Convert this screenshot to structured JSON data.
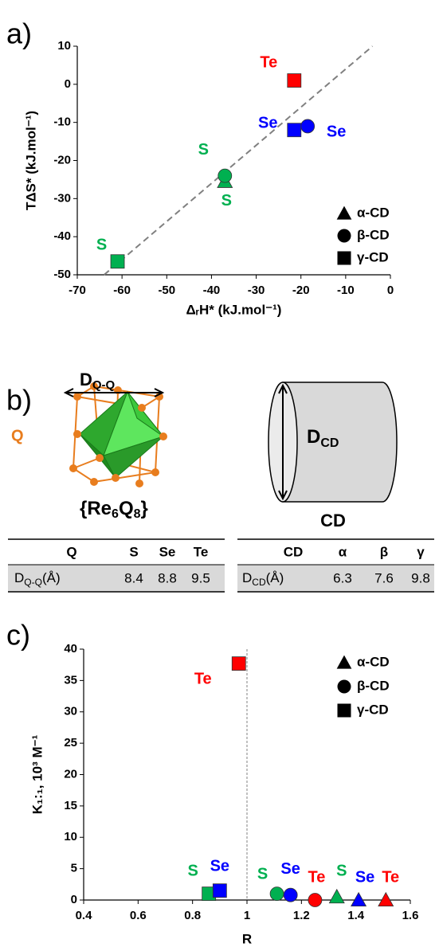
{
  "chart_data": [
    {
      "type": "scatter",
      "panel": "a)",
      "x_label": "ΔᵣH* (kJ.mol⁻¹)",
      "y_label": "TΔS* (kJ.mol⁻¹)",
      "xlim": [
        -70,
        0
      ],
      "xticks": [
        -70,
        -60,
        -50,
        -40,
        -30,
        -20,
        -10,
        0
      ],
      "ylim": [
        -50,
        10
      ],
      "yticks": [
        -50,
        -40,
        -30,
        -20,
        -10,
        0,
        10
      ],
      "trend_line": {
        "x": [
          -64,
          -4
        ],
        "y": [
          -50,
          10
        ]
      },
      "legend_color": "#000000",
      "series": [
        {
          "name": "α-CD",
          "marker": "triangle",
          "x": [
            -37
          ],
          "values": [
            -25.5
          ],
          "labels": [
            "S"
          ],
          "colors": [
            "#00b050"
          ]
        },
        {
          "name": "β-CD",
          "marker": "circle",
          "x": [
            -37,
            -18.5
          ],
          "values": [
            -24,
            -11
          ],
          "labels": [
            "S",
            "Se"
          ],
          "colors": [
            "#00b050",
            "#0000ff"
          ]
        },
        {
          "name": "γ-CD",
          "marker": "square",
          "x": [
            -61,
            -21.5,
            -21.5
          ],
          "values": [
            -46.5,
            -12,
            1
          ],
          "labels": [
            "S",
            "Se",
            "Te"
          ],
          "colors": [
            "#00b050",
            "#0000ff",
            "#ff0000"
          ]
        }
      ]
    },
    {
      "type": "scatter",
      "panel": "c)",
      "x_label": "R",
      "y_label": "K₁:₁, 10³ M⁻¹",
      "xlim": [
        0.4,
        1.6
      ],
      "xticks": [
        0.4,
        0.6,
        0.8,
        1,
        1.2,
        1.4,
        1.6
      ],
      "ylim": [
        0,
        40
      ],
      "yticks": [
        0,
        5,
        10,
        15,
        20,
        25,
        30,
        35,
        40
      ],
      "reference_x": 1,
      "legend_color": "#000000",
      "series": [
        {
          "name": "α-CD",
          "marker": "triangle",
          "x": [
            1.33,
            1.41,
            1.51
          ],
          "values": [
            0.5,
            0,
            0
          ],
          "labels": [
            "S",
            "Se",
            "Te"
          ],
          "colors": [
            "#00b050",
            "#0000ff",
            "#ff0000"
          ]
        },
        {
          "name": "β-CD",
          "marker": "circle",
          "x": [
            1.11,
            1.16,
            1.25
          ],
          "values": [
            1,
            0.8,
            0
          ],
          "labels": [
            "S",
            "Se",
            "Te"
          ],
          "colors": [
            "#00b050",
            "#0000ff",
            "#ff0000"
          ]
        },
        {
          "name": "γ-CD",
          "marker": "square",
          "x": [
            0.86,
            0.9,
            0.97
          ],
          "values": [
            1,
            1.5,
            37.7
          ],
          "labels": [
            "S",
            "Se",
            "Te"
          ],
          "colors": [
            "#00b050",
            "#0000ff",
            "#ff0000"
          ]
        }
      ]
    }
  ],
  "diagram": {
    "panel": "b)",
    "distance": {
      "main": "D",
      "sub": "Q-Q"
    },
    "atom": "Q",
    "cluster": {
      "open": "{Re",
      "n1": "6",
      "q": "Q",
      "n2": "8",
      "close": "}"
    },
    "cd_distance": {
      "main": "D",
      "sub": "CD"
    },
    "cd": "CD"
  },
  "tables": [
    {
      "header": [
        "Q",
        "S",
        "Se",
        "Te"
      ],
      "row_label": {
        "main": "D",
        "sub": "Q-Q",
        "unit": "(Å)"
      },
      "row": [
        8.4,
        8.8,
        9.5
      ]
    },
    {
      "header": [
        "CD",
        "α",
        "β",
        "γ"
      ],
      "row_label": {
        "main": "D",
        "sub": "CD",
        "unit": "(Å)"
      },
      "row": [
        6.3,
        7.6,
        9.8
      ]
    }
  ]
}
